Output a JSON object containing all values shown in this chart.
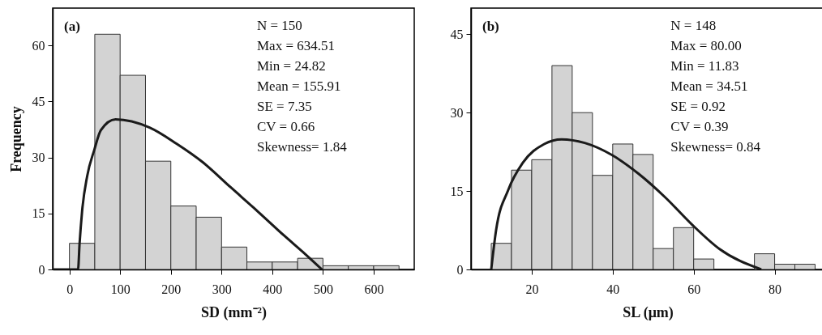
{
  "chart_data": [
    {
      "type": "histogram",
      "xlabel": "SD (mm⁻²)",
      "ylabel": "Frequency",
      "color": "#d3d3d3",
      "bins": [
        0,
        50,
        100,
        150,
        200,
        250,
        300,
        350,
        400,
        450,
        500,
        550,
        600,
        650
      ],
      "values": [
        7,
        63,
        52,
        29,
        17,
        14,
        6,
        2,
        2,
        3,
        1,
        1,
        1
      ],
      "series": [
        {
          "type": "line",
          "color": "#1a1a1a",
          "x": [
            -33,
            17,
            20,
            25,
            35,
            49,
            62,
            91,
            158,
            211,
            264,
            318,
            371,
            424,
            466,
            498
          ],
          "values": [
            0,
            0,
            6.9,
            15.6,
            25,
            32,
            37.3,
            40.2,
            38,
            33.7,
            28.6,
            22,
            15.6,
            9,
            4,
            0
          ]
        }
      ],
      "xlim": [
        -33,
        680
      ],
      "ylim": [
        0,
        70
      ],
      "xticks": [
        0,
        100,
        200,
        300,
        400,
        500,
        600
      ],
      "yticks": [
        0,
        15,
        30,
        45,
        60
      ],
      "grid": false,
      "annotations": [
        "(a)",
        "N = 150",
        "Max = 634.51",
        "Min = 24.82",
        "Mean = 155.91",
        "SE = 7.35",
        "CV =  0.66",
        "Skewness= 1.84"
      ]
    },
    {
      "type": "histogram",
      "xlabel": "SL (μm)",
      "color": "#d3d3d3",
      "bins": [
        10,
        15,
        20,
        25,
        30,
        35,
        40,
        45,
        50,
        55,
        60,
        65,
        70,
        75,
        80,
        85,
        90
      ],
      "values": [
        5,
        19,
        21,
        39,
        30,
        18,
        24,
        22,
        4,
        8,
        2,
        0,
        0,
        3,
        1,
        1
      ],
      "series": [
        {
          "type": "line",
          "color": "#1a1a1a",
          "x": [
            10,
            11.2,
            14.2,
            17.8,
            23.1,
            27.4,
            33.1,
            39.8,
            46.4,
            53.1,
            59.7,
            66.4,
            76.7
          ],
          "values": [
            0,
            7.5,
            15.2,
            20.4,
            24,
            24.9,
            24.2,
            21.9,
            18.3,
            13.7,
            8.5,
            3.9,
            0
          ]
        }
      ],
      "xlim": [
        5,
        92.3
      ],
      "ylim": [
        0,
        50
      ],
      "xticks": [
        20,
        40,
        60,
        80
      ],
      "yticks": [
        0,
        15,
        30,
        45
      ],
      "grid": false,
      "annotations": [
        "(b)",
        "N = 148",
        "Max = 80.00",
        "Min = 11.83",
        "Mean = 34.51",
        "SE = 0.92",
        "CV =  0.39",
        "Skewness= 0.84"
      ]
    }
  ]
}
